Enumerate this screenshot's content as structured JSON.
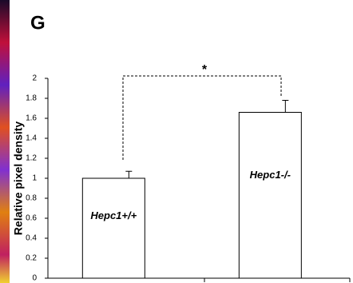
{
  "chart_data": {
    "type": "bar",
    "panel_label": "G",
    "ylabel": "Relative pixel density",
    "categories": [
      "Hepc1+/+",
      "Hepc1-/-"
    ],
    "values": [
      1.0,
      1.66
    ],
    "errors": [
      0.07,
      0.12
    ],
    "color": "#ffffff",
    "ylim": [
      0,
      2
    ],
    "yticks": [
      0,
      0.2,
      0.4,
      0.6,
      0.8,
      1,
      1.2,
      1.4,
      1.6,
      1.8,
      2
    ],
    "annotation": "*"
  }
}
